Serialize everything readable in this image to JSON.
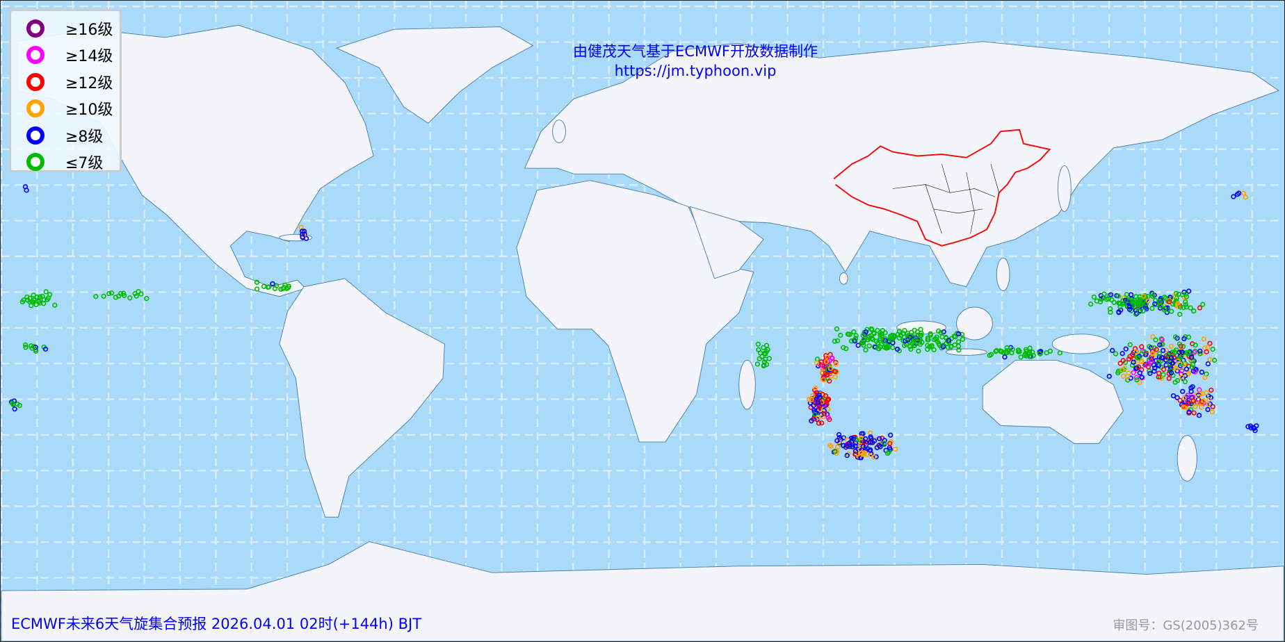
{
  "credit": {
    "line1": "由健茂天气基于ECMWF开放数据制作",
    "line2": "https://jm.typhoon.vip"
  },
  "legend": [
    {
      "label": "≥16级",
      "color": "#800080"
    },
    {
      "label": "≥14级",
      "color": "#ff00ff"
    },
    {
      "label": "≥12级",
      "color": "#ff0000"
    },
    {
      "label": "≥10级",
      "color": "#ffa500"
    },
    {
      "label": "≥8级",
      "color": "#0000ff"
    },
    {
      "label": "≤7级",
      "color": "#00bb00"
    }
  ],
  "footer": {
    "title": "ECMWF未来6天气旋集合预报 2026.04.01 02时(+144h) BJT",
    "approval": "审图号：GS(2005)362号"
  },
  "colors": {
    "ocean": "#aadaf9",
    "land": "#f4f5fa",
    "coast": "#4a7fa8",
    "china_border": "#ff0000"
  }
}
